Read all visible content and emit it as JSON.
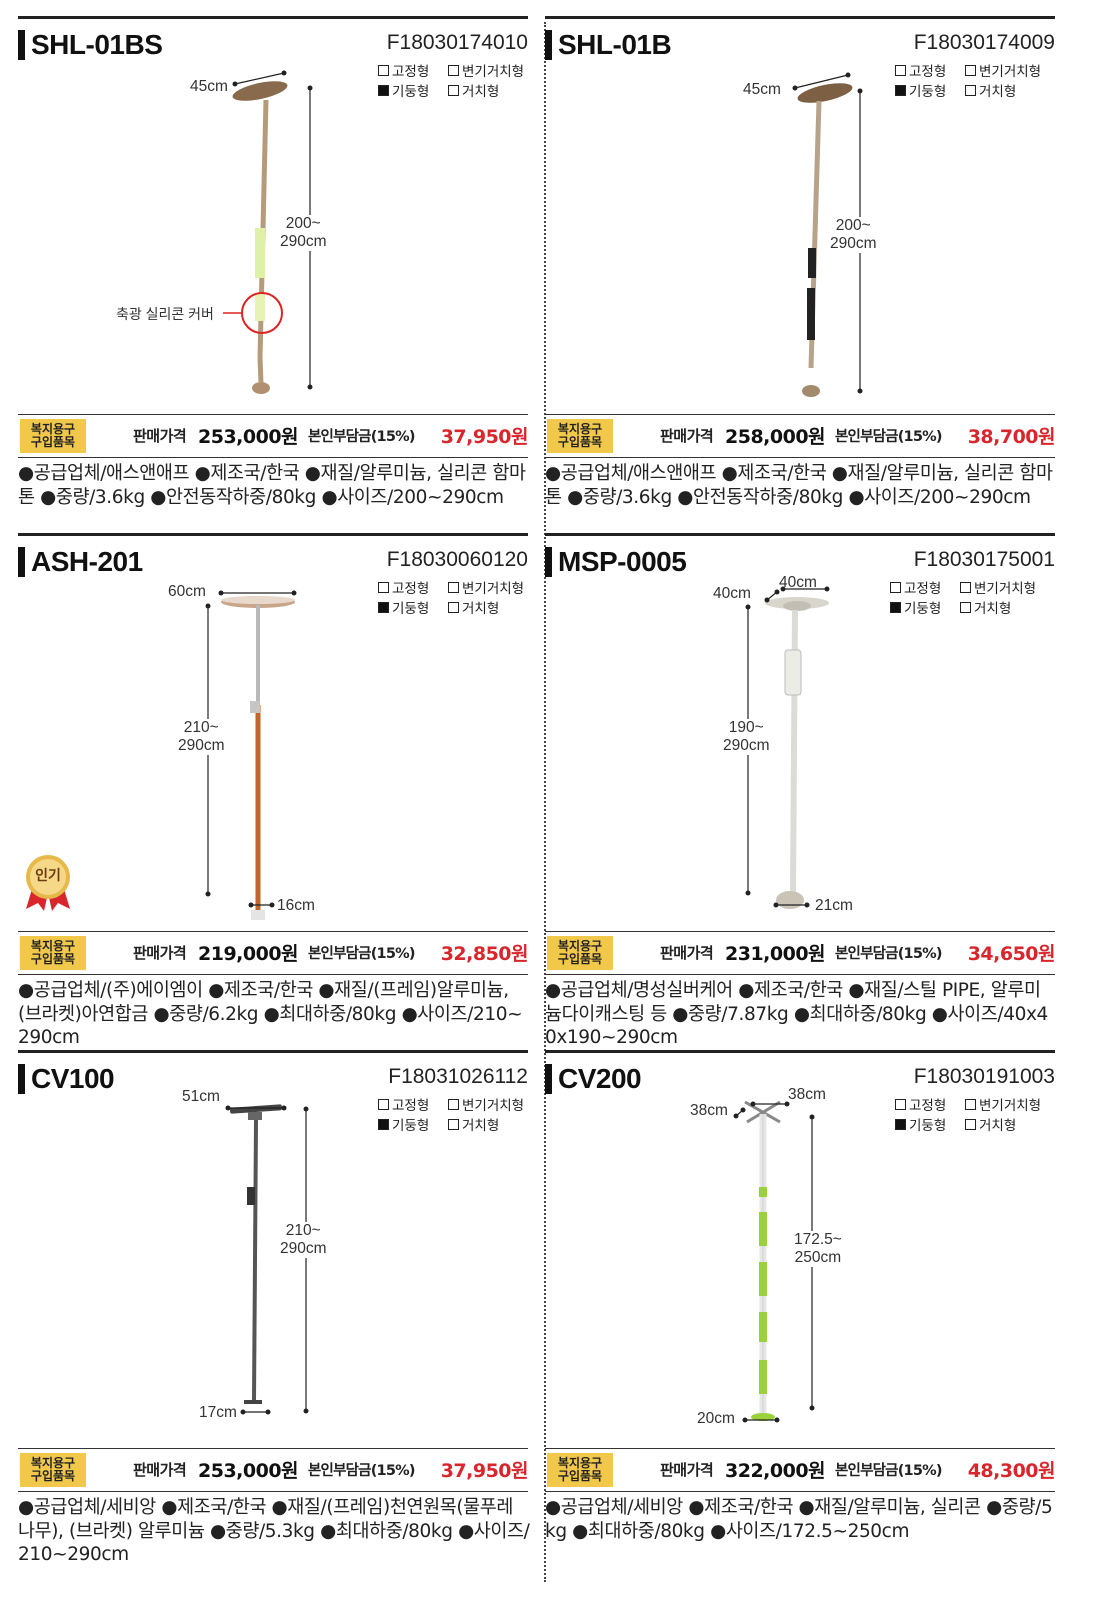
{
  "common": {
    "tag_line1": "복지용구",
    "tag_line2": "구입품목",
    "price_label": "판매가격",
    "burden_label": "본인부담금(15%)",
    "type_fixed": "고정형",
    "type_toilet": "변기거치형",
    "type_pole": "기둥형",
    "type_mount": "거치형",
    "popular_badge": "인기",
    "colors": {
      "burden": "#d9262c",
      "tag": "#f2c84b"
    }
  },
  "products": [
    {
      "model": "SHL-01BS",
      "code": "F18030174010",
      "type_selected": "기둥형",
      "price": "253,000원",
      "burden": "37,950원",
      "dim_top": "45cm",
      "dim_height_1": "200~",
      "dim_height_2": "290cm",
      "callout": "축광 실리콘 커버",
      "spec": "●공급업체/애스앤애프 ●제조국/한국 ●재질/알루미늄, 실리콘 함마톤 ●중량/3.6kg ●안전동작하중/80kg ●사이즈/200~290cm"
    },
    {
      "model": "SHL-01B",
      "code": "F18030174009",
      "type_selected": "기둥형",
      "price": "258,000원",
      "burden": "38,700원",
      "dim_top": "45cm",
      "dim_height_1": "200~",
      "dim_height_2": "290cm",
      "spec": "●공급업체/애스앤애프 ●제조국/한국 ●재질/알루미늄, 실리콘 함마톤 ●중량/3.6kg ●안전동작하중/80kg ●사이즈/200~290cm"
    },
    {
      "model": "ASH-201",
      "code": "F18030060120",
      "type_selected": "기둥형",
      "price": "219,000원",
      "burden": "32,850원",
      "dim_top": "60cm",
      "dim_height_1": "210~",
      "dim_height_2": "290cm",
      "dim_base": "16cm",
      "spec": "●공급업체/(주)에이엠이 ●제조국/한국 ●재질/(프레임)알루미늄,(브라켓)아연합금 ●중량/6.2kg ●최대하중/80kg ●사이즈/210~290cm"
    },
    {
      "model": "MSP-0005",
      "code": "F18030175001",
      "type_selected": "기둥형",
      "price": "231,000원",
      "burden": "34,650원",
      "dim_top": "40cm",
      "dim_top2": "40cm",
      "dim_height_1": "190~",
      "dim_height_2": "290cm",
      "dim_base": "21cm",
      "spec": "●공급업체/명성실버케어 ●제조국/한국 ●재질/스틸 PIPE, 알루미늄다이캐스팅 등 ●중량/7.87kg ●최대하중/80kg ●사이즈/40x40x190~290cm"
    },
    {
      "model": "CV100",
      "code": "F18031026112",
      "type_selected": "기둥형",
      "price": "253,000원",
      "burden": "37,950원",
      "dim_top": "51cm",
      "dim_height_1": "210~",
      "dim_height_2": "290cm",
      "dim_base": "17cm",
      "spec": "●공급업체/세비앙 ●제조국/한국 ●재질/(프레임)천연원목(물푸레 나무), (브라켓) 알루미늄 ●중량/5.3kg ●최대하중/80kg ●사이즈/210~290cm"
    },
    {
      "model": "CV200",
      "code": "F18030191003",
      "type_selected": "기둥형",
      "price": "322,000원",
      "burden": "48,300원",
      "dim_top": "38cm",
      "dim_top2": "38cm",
      "dim_height_1": "172.5~",
      "dim_height_2": "250cm",
      "dim_base": "20cm",
      "spec": "●공급업체/세비앙 ●제조국/한국 ●재질/알루미늄, 실리콘 ●중량/5kg ●최대하중/80kg ●사이즈/172.5~250cm"
    }
  ]
}
